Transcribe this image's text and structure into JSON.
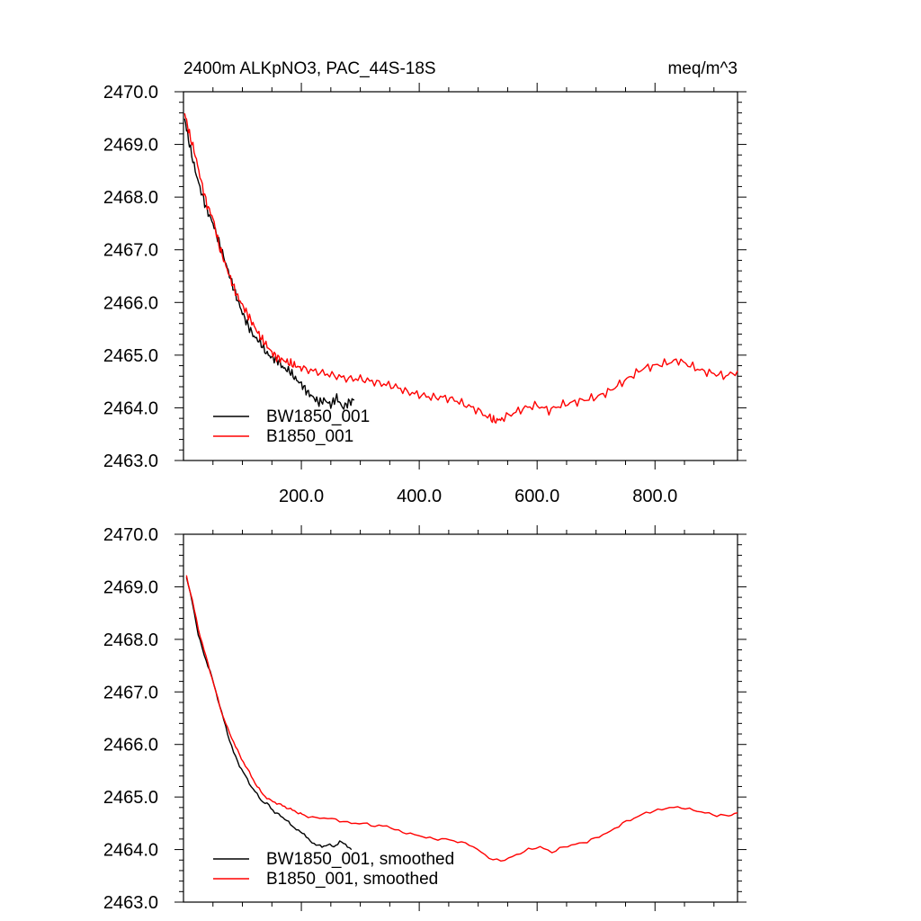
{
  "figure": {
    "title_left": "2400m ALKpNO3, PAC_44S-18S",
    "title_right": "meq/m^3"
  },
  "chart_data": [
    {
      "type": "line",
      "xlim": [
        0,
        940
      ],
      "ylim": [
        2463.0,
        2470.0
      ],
      "y_ticks": [
        "2463.0",
        "2464.0",
        "2465.0",
        "2466.0",
        "2467.0",
        "2468.0",
        "2469.0",
        "2470.0"
      ],
      "x_ticks": [
        "200.0",
        "400.0",
        "600.0",
        "800.0"
      ],
      "legend_position": "bottom-left",
      "series": [
        {
          "name": "BW1850_001",
          "color": "#000000",
          "x": [
            2,
            10,
            20,
            30,
            40,
            50,
            60,
            70,
            80,
            90,
            100,
            110,
            120,
            130,
            140,
            150,
            160,
            170,
            180,
            190,
            200,
            210,
            220,
            230,
            240,
            250,
            260,
            270,
            280,
            290
          ],
          "y": [
            2469.5,
            2469.0,
            2468.5,
            2468.1,
            2467.75,
            2467.5,
            2467.15,
            2466.8,
            2466.45,
            2466.1,
            2465.8,
            2465.55,
            2465.35,
            2465.25,
            2465.05,
            2464.95,
            2464.9,
            2464.75,
            2464.7,
            2464.55,
            2464.45,
            2464.3,
            2464.2,
            2464.1,
            2464.15,
            2464.05,
            2464.2,
            2464.0,
            2464.1,
            2464.15
          ]
        },
        {
          "name": "B1850_001",
          "color": "#ff0000",
          "x": [
            2,
            10,
            20,
            30,
            40,
            50,
            60,
            70,
            80,
            90,
            100,
            110,
            120,
            130,
            140,
            150,
            160,
            170,
            180,
            190,
            200,
            220,
            240,
            260,
            280,
            300,
            320,
            340,
            360,
            380,
            400,
            420,
            440,
            460,
            480,
            500,
            520,
            530,
            540,
            560,
            580,
            600,
            620,
            640,
            660,
            680,
            700,
            720,
            740,
            760,
            780,
            800,
            820,
            840,
            860,
            880,
            900,
            920,
            940
          ],
          "y": [
            2469.6,
            2469.2,
            2468.8,
            2468.3,
            2467.85,
            2467.6,
            2467.1,
            2466.75,
            2466.45,
            2466.15,
            2465.95,
            2465.75,
            2465.55,
            2465.35,
            2465.2,
            2465.05,
            2464.95,
            2464.9,
            2464.85,
            2464.8,
            2464.75,
            2464.7,
            2464.65,
            2464.6,
            2464.55,
            2464.55,
            2464.5,
            2464.45,
            2464.4,
            2464.3,
            2464.25,
            2464.2,
            2464.2,
            2464.15,
            2464.05,
            2463.95,
            2463.8,
            2463.75,
            2463.8,
            2463.9,
            2464.0,
            2464.05,
            2463.95,
            2464.05,
            2464.1,
            2464.15,
            2464.2,
            2464.3,
            2464.45,
            2464.6,
            2464.75,
            2464.8,
            2464.85,
            2464.9,
            2464.8,
            2464.7,
            2464.65,
            2464.6,
            2464.7
          ]
        }
      ]
    },
    {
      "type": "line",
      "xlim": [
        0,
        940
      ],
      "ylim": [
        2463.0,
        2470.0
      ],
      "y_ticks": [
        "2463.0",
        "2464.0",
        "2465.0",
        "2466.0",
        "2467.0",
        "2468.0",
        "2469.0",
        "2470.0"
      ],
      "x_ticks": [],
      "legend_position": "bottom-left",
      "series": [
        {
          "name": "BW1850_001, smoothed",
          "color": "#000000",
          "x": [
            5,
            15,
            25,
            35,
            45,
            55,
            65,
            75,
            85,
            95,
            105,
            115,
            125,
            135,
            145,
            155,
            165,
            175,
            185,
            195,
            205,
            215,
            225,
            235,
            245,
            255,
            265,
            275,
            285
          ],
          "y": [
            2469.2,
            2468.7,
            2468.1,
            2467.7,
            2467.4,
            2467.0,
            2466.6,
            2466.2,
            2465.85,
            2465.6,
            2465.4,
            2465.2,
            2465.05,
            2464.9,
            2464.85,
            2464.7,
            2464.65,
            2464.55,
            2464.45,
            2464.35,
            2464.3,
            2464.15,
            2464.1,
            2464.05,
            2464.1,
            2464.05,
            2464.15,
            2464.1,
            2464.0
          ]
        },
        {
          "name": "B1850_001, smoothed",
          "color": "#ff0000",
          "x": [
            5,
            15,
            25,
            35,
            45,
            55,
            65,
            75,
            85,
            95,
            105,
            115,
            125,
            135,
            145,
            155,
            165,
            175,
            185,
            195,
            205,
            225,
            245,
            265,
            285,
            305,
            325,
            345,
            365,
            385,
            405,
            425,
            445,
            465,
            485,
            505,
            525,
            545,
            565,
            585,
            605,
            625,
            645,
            665,
            685,
            705,
            725,
            745,
            765,
            785,
            805,
            825,
            845,
            865,
            885,
            905,
            925,
            940
          ],
          "y": [
            2469.2,
            2468.75,
            2468.2,
            2467.8,
            2467.4,
            2467.0,
            2466.6,
            2466.3,
            2466.05,
            2465.8,
            2465.6,
            2465.4,
            2465.2,
            2465.05,
            2464.95,
            2464.9,
            2464.85,
            2464.8,
            2464.75,
            2464.7,
            2464.65,
            2464.6,
            2464.6,
            2464.55,
            2464.5,
            2464.5,
            2464.45,
            2464.45,
            2464.35,
            2464.3,
            2464.25,
            2464.2,
            2464.2,
            2464.15,
            2464.1,
            2463.95,
            2463.8,
            2463.8,
            2463.9,
            2464.0,
            2464.05,
            2463.95,
            2464.05,
            2464.1,
            2464.15,
            2464.25,
            2464.35,
            2464.5,
            2464.6,
            2464.7,
            2464.75,
            2464.8,
            2464.8,
            2464.75,
            2464.7,
            2464.65,
            2464.65,
            2464.7
          ]
        }
      ]
    }
  ]
}
